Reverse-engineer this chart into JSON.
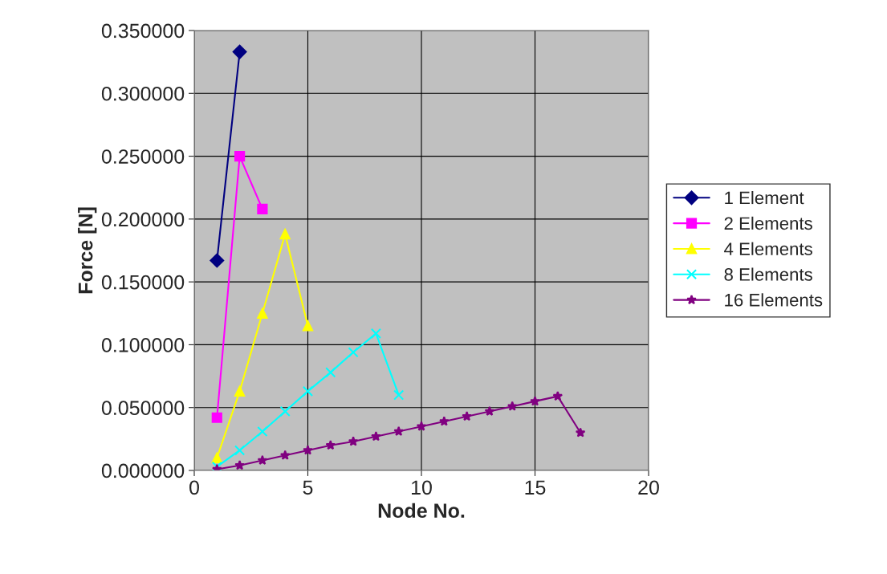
{
  "chart_data": {
    "type": "line",
    "xlabel": "Node No.",
    "ylabel": "Force [N]",
    "xlim": [
      0,
      20
    ],
    "xticks": [
      0,
      5,
      10,
      15,
      20
    ],
    "ylim": [
      0,
      0.35
    ],
    "yticks": [
      {
        "value": 0,
        "label": "0.000000"
      },
      {
        "value": 0.05,
        "label": "0.050000"
      },
      {
        "value": 0.1,
        "label": "0.100000"
      },
      {
        "value": 0.15,
        "label": "0.150000"
      },
      {
        "value": 0.2,
        "label": "0.200000"
      },
      {
        "value": 0.25,
        "label": "0.250000"
      },
      {
        "value": 0.3,
        "label": "0.300000"
      },
      {
        "value": 0.35,
        "label": "0.350000"
      }
    ],
    "grid": true,
    "legend": "right",
    "line_style": "solid",
    "series": [
      {
        "name": "1 Element",
        "color": "#000080",
        "marker": "diamond",
        "x": [
          1,
          2
        ],
        "values": [
          0.167,
          0.333
        ]
      },
      {
        "name": "2 Elements",
        "color": "#ff00ff",
        "marker": "square",
        "x": [
          1,
          2,
          3
        ],
        "values": [
          0.042,
          0.25,
          0.208
        ]
      },
      {
        "name": "4 Elements",
        "color": "#ffff00",
        "marker": "triangle",
        "x": [
          1,
          2,
          3,
          4,
          5
        ],
        "values": [
          0.01,
          0.063,
          0.125,
          0.188,
          0.115
        ]
      },
      {
        "name": "8 Elements",
        "color": "#00ffff",
        "marker": "cross",
        "x": [
          1,
          2,
          3,
          4,
          5,
          6,
          7,
          8,
          9
        ],
        "values": [
          0.003,
          0.016,
          0.031,
          0.047,
          0.063,
          0.078,
          0.094,
          0.109,
          0.06
        ]
      },
      {
        "name": "16 Elements",
        "color": "#800080",
        "marker": "star",
        "x": [
          1,
          2,
          3,
          4,
          5,
          6,
          7,
          8,
          9,
          10,
          11,
          12,
          13,
          14,
          15,
          16,
          17
        ],
        "values": [
          0.001,
          0.004,
          0.008,
          0.012,
          0.016,
          0.02,
          0.023,
          0.027,
          0.031,
          0.035,
          0.039,
          0.043,
          0.047,
          0.051,
          0.055,
          0.059,
          0.03
        ]
      }
    ]
  }
}
